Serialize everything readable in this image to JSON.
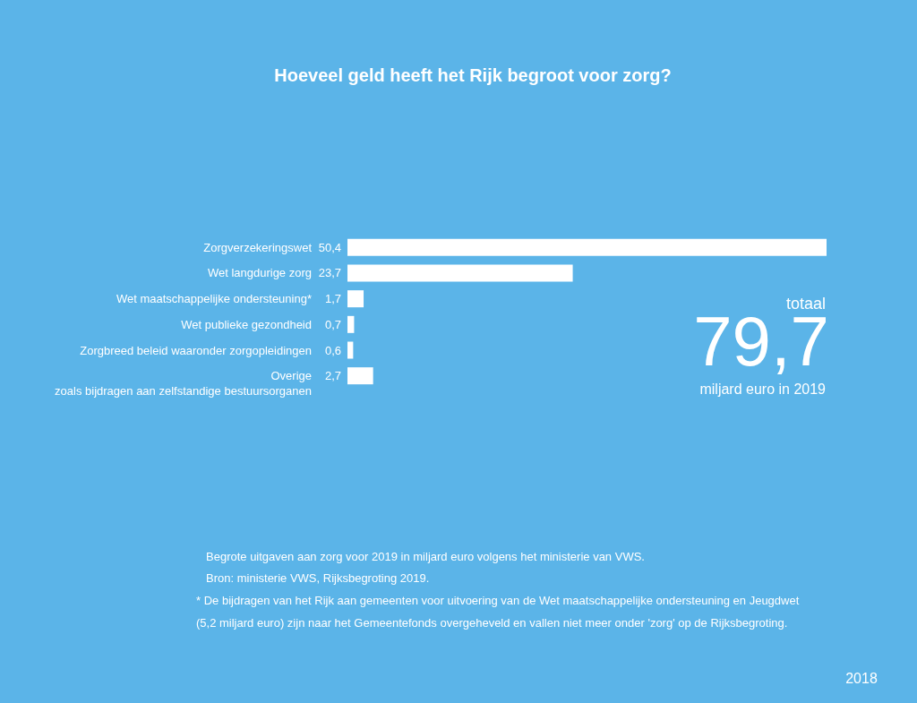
{
  "chart_data": {
    "type": "bar",
    "orientation": "horizontal",
    "title": "Hoeveel geld heeft het Rijk begroot voor zorg?",
    "categories": [
      "Zorgverzekeringswet",
      "Wet langdurige zorg",
      "Wet maatschappelijke ondersteuning*",
      "Wet publieke gezondheid",
      "Zorgbreed beleid waaronder zorgopleidingen",
      "Overige\nzoals bijdragen aan zelfstandige bestuursorganen"
    ],
    "values": [
      50.4,
      23.7,
      1.7,
      0.7,
      0.6,
      2.7
    ],
    "value_labels": [
      "50,4",
      "23,7",
      "1,7",
      "0,7",
      "0,6",
      "2,7"
    ],
    "color": "#ffffff",
    "annotations": [
      "totaal",
      "79,7",
      "miljard euro in 2019",
      "Begrote uitgaven aan zorg voor 2019 in miljard euro volgens het ministerie van VWS.",
      "Bron: ministerie VWS, Rijksbegroting 2019.",
      "* De bijdragen van het Rijk aan gemeenten voor uitvoering van de Wet maatschappelijke ondersteuning en Jeugdwet\n(5,2 miljard euro) zijn naar het Gemeentefonds overgeheveld en vallen niet meer onder 'zorg' op de Rijksbegroting.",
      "2018"
    ]
  }
}
